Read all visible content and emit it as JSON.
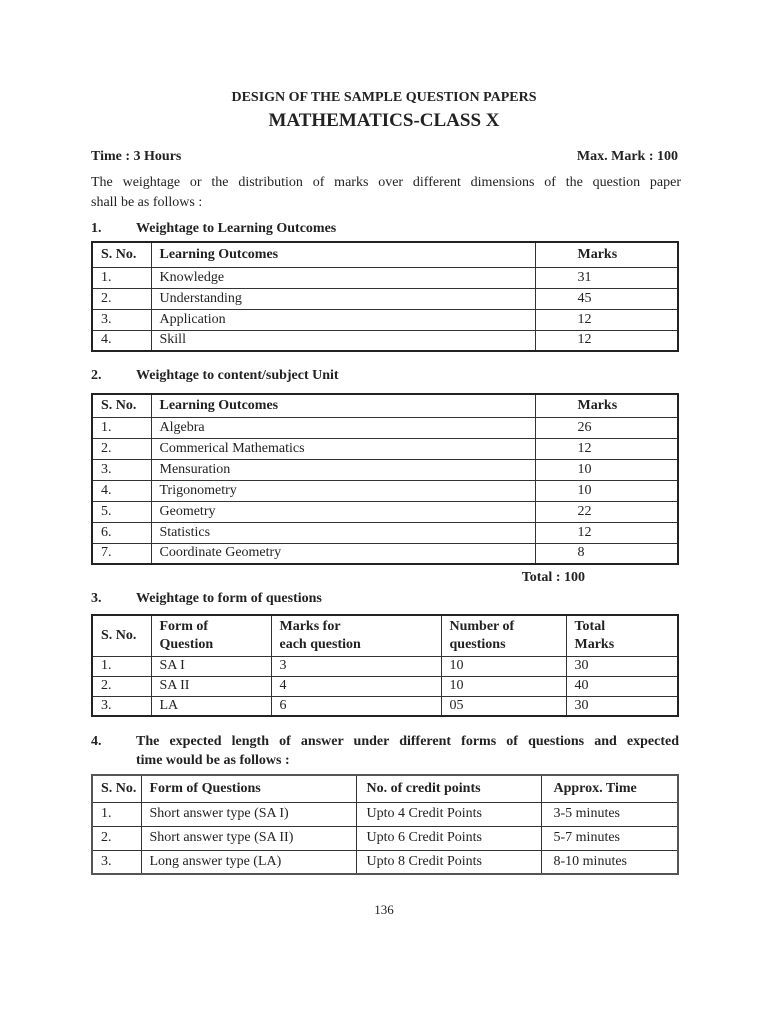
{
  "header": {
    "title": "DESIGN OF THE SAMPLE QUESTION PAPERS",
    "subtitle": "MATHEMATICS-CLASS X",
    "time": "Time : 3 Hours",
    "max_mark": "Max. Mark : 100",
    "intro_line1": "The weightage or the distribution of marks over different dimensions of the question paper",
    "intro_line2": "shall be as follows :"
  },
  "sections": [
    {
      "number": "1.",
      "heading": "Weightage to Learning Outcomes",
      "columns": [
        "S. No.",
        "Learning Outcomes",
        "Marks"
      ],
      "rows": [
        [
          "1.",
          "Knowledge",
          "31"
        ],
        [
          "2.",
          "Understanding",
          "45"
        ],
        [
          "3.",
          "Application",
          "12"
        ],
        [
          "4.",
          "Skill",
          "12"
        ]
      ]
    },
    {
      "number": "2.",
      "heading": "Weightage to content/subject Unit",
      "columns": [
        "S. No.",
        "Learning Outcomes",
        "Marks"
      ],
      "rows": [
        [
          "1.",
          "Algebra",
          "26"
        ],
        [
          "2.",
          "Commerical Mathematics",
          "12"
        ],
        [
          "3.",
          "Mensuration",
          "10"
        ],
        [
          "4.",
          "Trigonometry",
          "10"
        ],
        [
          "5.",
          "Geometry",
          "22"
        ],
        [
          "6.",
          "Statistics",
          "12"
        ],
        [
          "7.",
          "Coordinate Geometry",
          "8"
        ]
      ],
      "total": "Total : 100"
    },
    {
      "number": "3.",
      "heading": "Weightage to form of questions",
      "columns": [
        "S. No.",
        "Form of\nQuestion",
        "Marks for\neach question",
        "Number of\nquestions",
        "Total\nMarks"
      ],
      "rows": [
        [
          "1.",
          "SA I",
          "3",
          "10",
          "30"
        ],
        [
          "2.",
          "SA II",
          "4",
          "10",
          "40"
        ],
        [
          "3.",
          "LA",
          "6",
          "05",
          "30"
        ]
      ]
    },
    {
      "number": "4.",
      "heading_line1": "The expected length of answer under different forms of questions and expected",
      "heading_line2": "time would be as follows :",
      "columns": [
        "S. No.",
        "Form of Questions",
        "No. of credit points",
        "Approx. Time"
      ],
      "rows": [
        [
          "1.",
          "Short answer type (SA I)",
          "Upto 4 Credit Points",
          "3-5 minutes"
        ],
        [
          "2.",
          "Short answer type (SA II)",
          "Upto 6 Credit Points",
          "5-7 minutes"
        ],
        [
          "3.",
          "Long answer type (LA)",
          "Upto 8 Credit Points",
          "8-10 minutes"
        ]
      ]
    }
  ],
  "footer": {
    "page_number": "136"
  }
}
